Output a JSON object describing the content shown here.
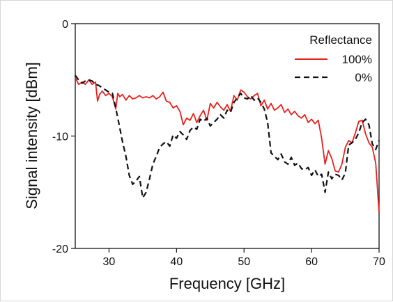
{
  "chart_data": {
    "type": "line",
    "title": "",
    "xlabel": "Frequency [GHz]",
    "ylabel": "Signal intensity [dBm]",
    "xlim": [
      25,
      70
    ],
    "ylim": [
      -20,
      0
    ],
    "xticks": [
      30,
      40,
      50,
      60,
      70
    ],
    "yticks": [
      0,
      -10,
      -20
    ],
    "grid": false,
    "legend": {
      "title": "Reflectance",
      "placement": "top-right"
    },
    "series": [
      {
        "name": "100%",
        "color": "#e8211c",
        "style": "solid",
        "x": [
          25,
          25.5,
          26,
          26.5,
          27,
          27.5,
          28,
          28.3,
          28.6,
          29,
          29.5,
          30,
          30.5,
          31,
          31.3,
          31.6,
          32,
          32.5,
          33,
          33.5,
          34,
          34.5,
          35,
          35.5,
          36,
          36.5,
          37,
          37.5,
          38,
          38.5,
          39,
          39.5,
          40,
          40.5,
          41,
          41.5,
          42,
          42.5,
          43,
          43.5,
          44,
          44.5,
          45,
          45.5,
          46,
          46.5,
          47,
          47.5,
          48,
          48.5,
          49,
          49.5,
          50,
          50.5,
          51,
          51.5,
          52,
          52.5,
          53,
          53.5,
          54,
          54.5,
          55,
          55.5,
          56,
          56.5,
          57,
          57.5,
          58,
          58.5,
          59,
          59.5,
          60,
          60.5,
          61,
          61.5,
          62,
          62.5,
          63,
          63.5,
          64,
          64.5,
          65,
          65.5,
          66,
          66.5,
          67,
          67.5,
          68,
          68.5,
          69,
          69.5,
          70
        ],
        "y": [
          -4.8,
          -5.4,
          -5.2,
          -5.4,
          -5.0,
          -5.4,
          -5.2,
          -6.9,
          -6.3,
          -6.0,
          -6.4,
          -6.2,
          -6.5,
          -7.6,
          -6.2,
          -6.5,
          -6.3,
          -6.8,
          -6.4,
          -6.7,
          -6.6,
          -6.4,
          -6.6,
          -6.5,
          -6.6,
          -6.4,
          -6.7,
          -6.5,
          -6.1,
          -6.9,
          -7.0,
          -7.5,
          -7.3,
          -7.8,
          -9.0,
          -8.4,
          -8.6,
          -8.0,
          -8.8,
          -8.2,
          -7.7,
          -8.6,
          -7.1,
          -7.5,
          -7.0,
          -7.4,
          -7.7,
          -7.2,
          -7.8,
          -6.4,
          -6.8,
          -5.9,
          -6.1,
          -6.5,
          -6.7,
          -6.4,
          -6.2,
          -7.3,
          -6.8,
          -7.6,
          -7.1,
          -7.7,
          -7.5,
          -7.2,
          -7.9,
          -7.6,
          -8.1,
          -7.8,
          -8.2,
          -8.4,
          -8.1,
          -8.8,
          -8.5,
          -8.9,
          -8.6,
          -10.2,
          -12.5,
          -11.3,
          -12.0,
          -13.1,
          -13.2,
          -12.5,
          -11.0,
          -10.4,
          -10.6,
          -9.7,
          -8.7,
          -8.6,
          -9.8,
          -10.6,
          -11.0,
          -12.4,
          -16.8
        ]
      },
      {
        "name": "0%",
        "color": "#111111",
        "style": "dashed",
        "x": [
          25,
          25.5,
          26,
          26.5,
          27,
          27.5,
          28,
          28.5,
          29,
          29.5,
          30,
          30.5,
          31,
          31.5,
          32,
          32.5,
          33,
          33.5,
          34,
          34.5,
          35,
          35.5,
          36,
          36.5,
          37,
          37.5,
          38,
          38.5,
          39,
          39.5,
          40,
          40.5,
          41,
          41.5,
          42,
          42.5,
          43,
          43.5,
          44,
          44.5,
          45,
          45.5,
          46,
          46.5,
          47,
          47.5,
          48,
          48.5,
          49,
          49.5,
          50,
          50.5,
          51,
          51.5,
          52,
          52.5,
          53,
          53.5,
          54,
          54.5,
          55,
          55.5,
          56,
          56.5,
          57,
          57.5,
          58,
          58.5,
          59,
          59.5,
          60,
          60.5,
          61,
          61.5,
          62,
          62.5,
          63,
          63.5,
          64,
          64.5,
          65,
          65.5,
          66,
          66.5,
          67,
          67.5,
          68,
          68.5,
          69,
          69.5,
          70
        ],
        "y": [
          -4.6,
          -5.0,
          -5.3,
          -5.1,
          -5.0,
          -5.1,
          -5.4,
          -5.5,
          -5.7,
          -5.9,
          -6.1,
          -6.2,
          -7.5,
          -9.0,
          -10.5,
          -11.8,
          -13.5,
          -14.3,
          -14.0,
          -13.6,
          -15.5,
          -15.0,
          -13.8,
          -12.5,
          -11.8,
          -11.0,
          -10.7,
          -10.5,
          -10.9,
          -9.9,
          -10.2,
          -9.6,
          -9.9,
          -10.3,
          -9.5,
          -9.2,
          -9.4,
          -8.5,
          -8.7,
          -8.4,
          -9.1,
          -8.8,
          -8.5,
          -8.1,
          -8.4,
          -7.7,
          -7.9,
          -7.0,
          -6.6,
          -6.2,
          -6.6,
          -6.7,
          -6.4,
          -6.8,
          -6.6,
          -7.0,
          -7.6,
          -8.8,
          -11.5,
          -11.8,
          -12.1,
          -11.6,
          -12.3,
          -12.5,
          -11.9,
          -12.6,
          -12.4,
          -12.9,
          -13.0,
          -12.8,
          -13.5,
          -13.0,
          -13.6,
          -13.4,
          -15.0,
          -13.2,
          -13.8,
          -13.4,
          -13.5,
          -13.9,
          -13.3,
          -10.8,
          -10.6,
          -10.3,
          -9.7,
          -8.8,
          -8.5,
          -9.0,
          -10.7,
          -11.2,
          -10.4
        ]
      }
    ]
  }
}
